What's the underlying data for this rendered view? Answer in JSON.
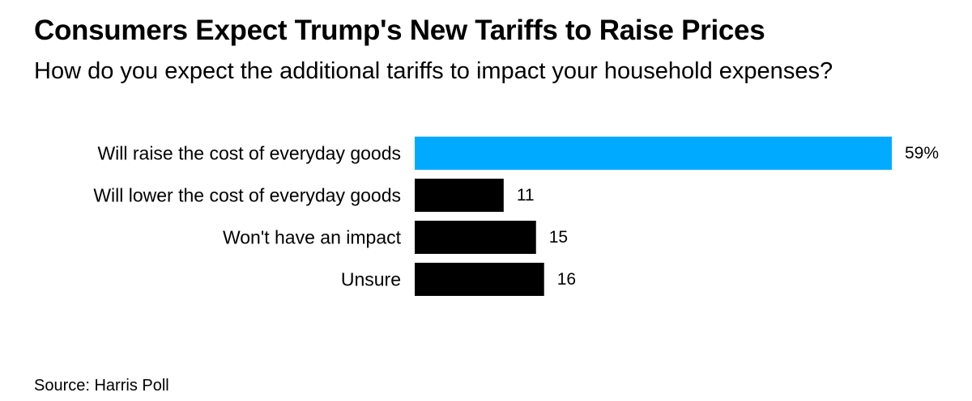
{
  "chart_data": {
    "type": "bar",
    "orientation": "horizontal",
    "title": "Consumers Expect Trump's New Tariffs to Raise Prices",
    "subtitle": "How do you expect the additional tariffs to impact your household expenses?",
    "categories": [
      "Will raise the cost of everyday goods",
      "Will lower the cost of everyday goods",
      "Won't have an impact",
      "Unsure"
    ],
    "values": [
      59,
      11,
      15,
      16
    ],
    "value_labels": [
      "59%",
      "11",
      "15",
      "16"
    ],
    "unit": "%",
    "xlim": [
      0,
      59
    ],
    "grid": false,
    "colors": {
      "highlight": "#00aaff",
      "default": "#000000"
    },
    "highlight_index": 0,
    "source": "Source: Harris Poll"
  }
}
